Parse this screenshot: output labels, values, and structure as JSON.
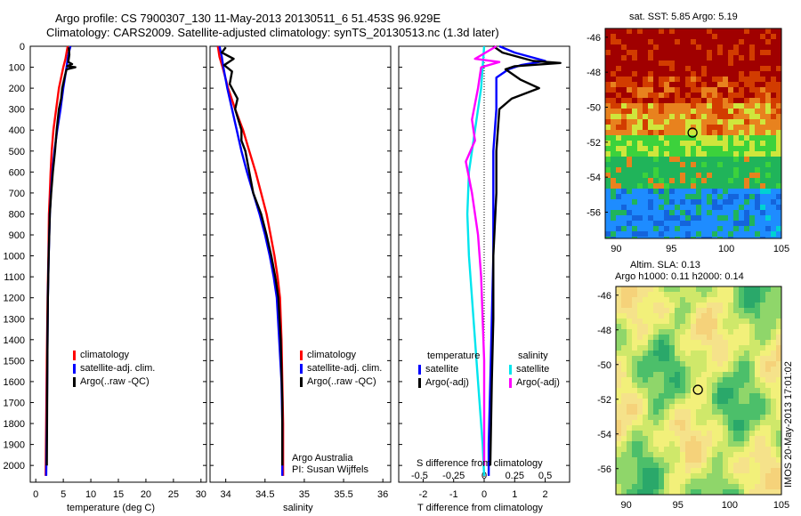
{
  "header": {
    "title_line1": "Argo profile: CS 7900307_130 11-May-2013 20130511_6 51.453S 96.929E",
    "title_line2": "Climatology: CARS2009. Satellite-adjusted climatology: synTS_20130513.nc (1.3d later)"
  },
  "chart_data": [
    {
      "type": "line",
      "xlabel": "temperature (deg C)",
      "ylabel": "",
      "xlim": [
        -1,
        31
      ],
      "ylim": [
        2080,
        0
      ],
      "xticks": [
        0,
        5,
        10,
        15,
        20,
        25,
        30
      ],
      "yticks": [
        0,
        100,
        200,
        300,
        400,
        500,
        600,
        700,
        800,
        900,
        1000,
        1100,
        1200,
        1300,
        1400,
        1500,
        1600,
        1700,
        1800,
        1900,
        2000
      ],
      "legend": [
        "climatology",
        "satellite-adj. clim.",
        "Argo(..raw -QC)"
      ],
      "series": [
        {
          "name": "climatology",
          "color": "#ff0000",
          "x": [
            5.8,
            5.6,
            5.4,
            5.0,
            4.2,
            3.7,
            3.2,
            2.9,
            2.7,
            2.55,
            2.4,
            2.3,
            2.15,
            2.0,
            1.9,
            1.8
          ],
          "y": [
            0,
            30,
            60,
            100,
            200,
            300,
            400,
            500,
            600,
            700,
            800,
            1000,
            1200,
            1500,
            1800,
            2050
          ]
        },
        {
          "name": "satellite-adj. clim.",
          "color": "#0000ff",
          "x": [
            6.3,
            6.0,
            5.8,
            5.6,
            5.0,
            4.5,
            3.9,
            3.4,
            3.0,
            2.75,
            2.55,
            2.35,
            2.2,
            2.1,
            2.0,
            1.9
          ],
          "y": [
            0,
            30,
            60,
            100,
            200,
            300,
            400,
            500,
            600,
            700,
            800,
            1000,
            1200,
            1500,
            1800,
            2050
          ]
        },
        {
          "name": "Argo(..raw -QC)",
          "color": "#000000",
          "x": [
            6.0,
            6.1,
            5.9,
            6.6,
            5.7,
            7.2,
            5.6,
            5.3,
            4.8,
            4.6,
            4.2,
            3.8,
            3.5,
            3.1,
            2.8,
            2.55,
            2.35,
            2.2,
            2.1,
            2.0
          ],
          "y": [
            5,
            40,
            75,
            85,
            95,
            100,
            110,
            140,
            200,
            250,
            300,
            400,
            500,
            600,
            700,
            800,
            1000,
            1200,
            1500,
            2000
          ]
        }
      ]
    },
    {
      "type": "line",
      "xlabel": "salinity",
      "ylabel": "",
      "xlim": [
        33.8,
        36.1
      ],
      "ylim": [
        2080,
        0
      ],
      "xticks": [
        34,
        34.5,
        35,
        35.5,
        36
      ],
      "legend": [
        "climatology",
        "satellite-adj. clim.",
        "Argo(..raw -QC)"
      ],
      "series": [
        {
          "name": "climatology",
          "color": "#ff0000",
          "x": [
            33.9,
            33.92,
            33.96,
            34.03,
            34.12,
            34.22,
            34.3,
            34.38,
            34.45,
            34.52,
            34.57,
            34.62,
            34.66,
            34.69,
            34.71,
            34.72,
            34.73,
            34.73
          ],
          "y": [
            0,
            50,
            100,
            200,
            300,
            400,
            500,
            600,
            700,
            800,
            900,
            1000,
            1100,
            1200,
            1400,
            1600,
            1800,
            2050
          ]
        },
        {
          "name": "satellite-adj. clim.",
          "color": "#0000ff",
          "x": [
            33.92,
            33.95,
            33.97,
            34.02,
            34.08,
            34.14,
            34.2,
            34.27,
            34.35,
            34.43,
            34.5,
            34.56,
            34.61,
            34.65,
            34.68,
            34.71,
            34.72,
            34.72
          ],
          "y": [
            0,
            50,
            100,
            200,
            300,
            400,
            500,
            600,
            700,
            800,
            900,
            1000,
            1100,
            1200,
            1400,
            1600,
            1800,
            2050
          ]
        },
        {
          "name": "Argo(..raw -QC)",
          "color": "#000000",
          "x": [
            34.0,
            33.95,
            34.1,
            33.98,
            34.08,
            34.05,
            34.15,
            34.12,
            34.2,
            34.2,
            34.25,
            34.3,
            34.35,
            34.45,
            34.52,
            34.58,
            34.63,
            34.67,
            34.7,
            34.72,
            34.72
          ],
          "y": [
            5,
            30,
            60,
            90,
            120,
            180,
            250,
            300,
            400,
            450,
            500,
            600,
            700,
            800,
            900,
            1000,
            1100,
            1200,
            1400,
            1700,
            2000
          ]
        }
      ]
    },
    {
      "type": "line",
      "title_top": "S difference from climatology",
      "xlabel": "T difference from climatology",
      "xlim": [
        -2.8,
        2.8
      ],
      "ylim": [
        2080,
        0
      ],
      "xticks": [
        -2,
        -1,
        0,
        1,
        2
      ],
      "top_xticks": [
        -0.5,
        -0.25,
        0,
        0.25,
        0.5
      ],
      "legend_temperature_heading": "temperature",
      "legend_salinity_heading": "salinity",
      "legend": [
        "satellite",
        "Argo(-adj)",
        "satellite",
        "Argo(-adj)"
      ],
      "series": [
        {
          "name": "satellite",
          "group": "temperature",
          "color": "#0000ff",
          "x": [
            0.5,
            1.0,
            2.0,
            1.2,
            0.8,
            0.4,
            0.4,
            0.3,
            0.3,
            0.3,
            0.25,
            0.2,
            0.15,
            0.15
          ],
          "y": [
            0,
            30,
            70,
            90,
            110,
            150,
            300,
            500,
            700,
            1000,
            1300,
            1600,
            1900,
            2050
          ]
        },
        {
          "name": "Argo(-adj)",
          "group": "temperature",
          "color": "#000000",
          "x": [
            0.3,
            0.6,
            1.6,
            2.5,
            1.0,
            0.7,
            1.2,
            1.8,
            0.9,
            0.5,
            0.4,
            0.4,
            0.3,
            0.3,
            0.25,
            0.2
          ],
          "y": [
            0,
            30,
            70,
            80,
            95,
            110,
            160,
            200,
            250,
            300,
            500,
            700,
            1000,
            1300,
            1600,
            2000
          ]
        },
        {
          "name": "satellite",
          "group": "salinity",
          "color": "#00e5ee",
          "x": [
            0.0,
            -0.05,
            -0.1,
            -0.2,
            -0.3,
            -0.4,
            -0.5,
            -0.55,
            -0.5,
            -0.4,
            -0.2,
            -0.05,
            0.0
          ],
          "y": [
            0,
            100,
            200,
            300,
            400,
            500,
            600,
            800,
            1000,
            1200,
            1600,
            1900,
            2050
          ]
        },
        {
          "name": "Argo(-adj)",
          "group": "salinity",
          "color": "#ff00ff",
          "x": [
            0.4,
            -0.3,
            0.5,
            -0.1,
            -0.2,
            -0.4,
            -0.3,
            -0.6,
            -0.4,
            -0.2,
            -0.1,
            0.0,
            0.0
          ],
          "y": [
            0,
            60,
            75,
            100,
            200,
            350,
            450,
            550,
            700,
            900,
            1100,
            1500,
            2000
          ]
        }
      ]
    },
    {
      "type": "heatmap",
      "title": "sat. SST: 5.85 Argo: 5.19",
      "xlim": [
        89,
        105
      ],
      "ylim": [
        -57.5,
        -45.5
      ],
      "xticks": [
        90,
        95,
        100,
        105
      ],
      "yticks": [
        -46,
        -48,
        -50,
        -52,
        -54,
        -56
      ],
      "marker": {
        "lon": 96.929,
        "lat": -51.453
      }
    },
    {
      "type": "heatmap",
      "title_line1": "Altim. SLA: 0.13",
      "title_line2": "Argo h1000: 0.11 h2000: 0.14",
      "xlim": [
        89,
        105
      ],
      "ylim": [
        -57.5,
        -45.5
      ],
      "xticks": [
        90,
        95,
        100,
        105
      ],
      "yticks": [
        -46,
        -48,
        -50,
        -52,
        -54,
        -56
      ],
      "marker": {
        "lon": 96.929,
        "lat": -51.453
      }
    }
  ],
  "footer": {
    "credit_line1": "Argo Australia",
    "credit_line2": "PI: Susan Wijffels",
    "timestamp": "IMOS 20-May-2013 17:01:02"
  }
}
